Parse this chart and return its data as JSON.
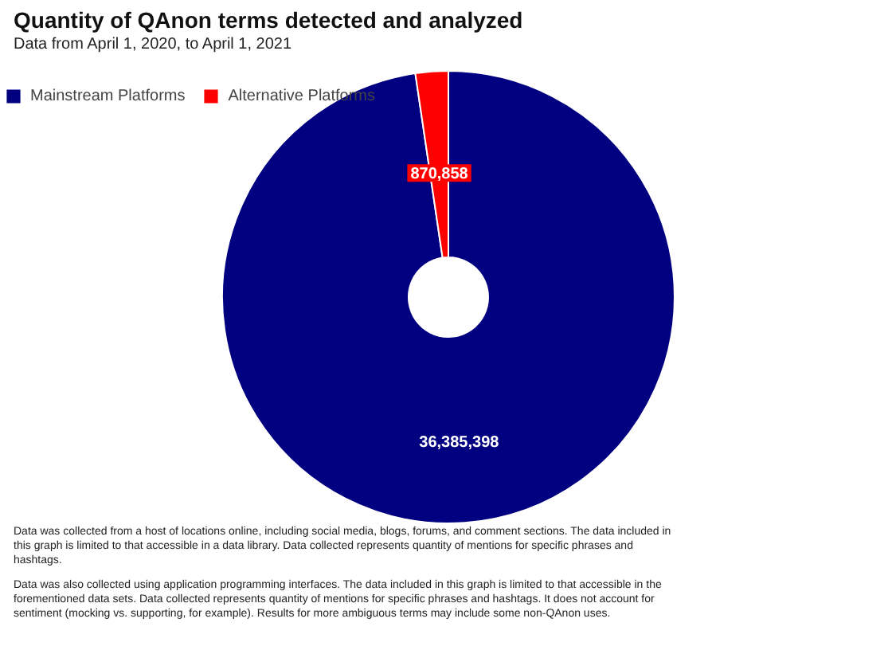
{
  "chart_data": {
    "type": "donut",
    "title": "Quantity of QAnon terms detected and analyzed",
    "subtitle": "Data from April 1, 2020, to April 1, 2021",
    "categories": [
      "Mainstream Platforms",
      "Alternative Platforms"
    ],
    "values": [
      36385398,
      870858
    ],
    "colors": [
      "#000080",
      "#ff0000"
    ],
    "value_labels": [
      "36,385,398",
      "870,858"
    ],
    "legend": "top left",
    "annotations": [
      "Data was collected from a host of locations online, including social media, blogs, forums, and comment sections. The data included in this graph is limited to that accessible in a data library. Data collected represents quantity of mentions for specific phrases and hashtags.",
      "Data was also collected using application programming interfaces. The data included in this graph is limited to that accessible in the forementioned data sets. Data collected represents quantity of mentions for specific phrases and hashtags. It does not account for sentiment (mocking vs. supporting, for example). Results for more ambiguous terms may include some non-QAnon uses."
    ]
  }
}
